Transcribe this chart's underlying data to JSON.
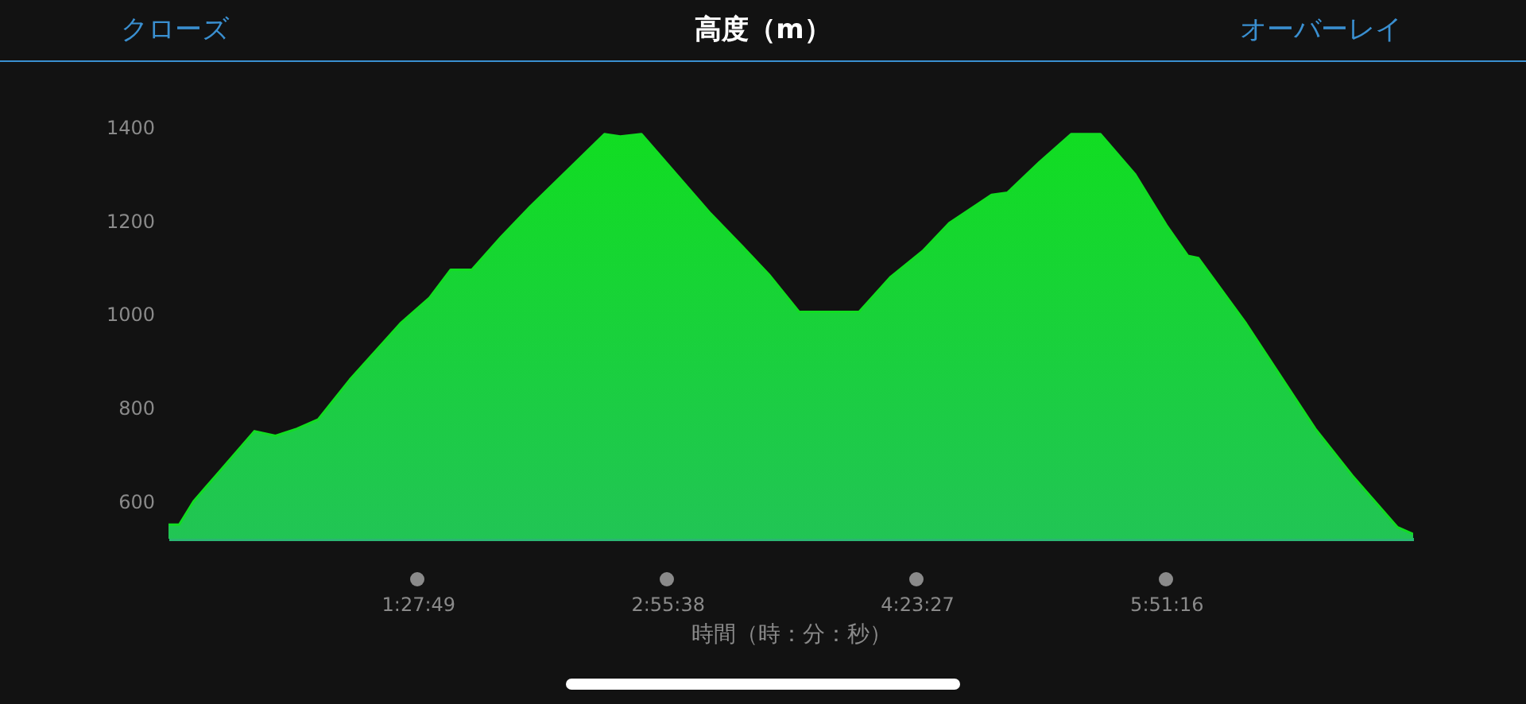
{
  "chart_data": {
    "type": "area",
    "title": "高度（m）",
    "xlabel": "時間（時：分：秒）",
    "annotations": [
      "クローズ",
      "オーバーレイ"
    ],
    "xlim": [
      0,
      7.303
    ],
    "ylim": [
      520,
      1400
    ],
    "xticks": [
      {
        "value": 1.4636,
        "label": "1:27:49"
      },
      {
        "value": 2.9272,
        "label": "2:55:38"
      },
      {
        "value": 4.3908,
        "label": "4:23:27"
      },
      {
        "value": 5.8544,
        "label": "5:51:16"
      }
    ],
    "yticks": [
      600,
      800,
      1000,
      1200,
      1400
    ],
    "grid": false,
    "series": [
      {
        "color": "#11dd22",
        "x": [
          0,
          0.063,
          0.147,
          0.302,
          0.504,
          0.628,
          0.753,
          0.878,
          1.064,
          1.36,
          1.531,
          1.655,
          1.78,
          1.951,
          2.122,
          2.558,
          2.651,
          2.775,
          3.181,
          3.367,
          3.523,
          3.7,
          4.052,
          4.238,
          4.425,
          4.581,
          4.829,
          4.923,
          5.11,
          5.296,
          5.468,
          5.67,
          5.856,
          5.981,
          6.043,
          6.323,
          6.729,
          6.946,
          7.21,
          7.303
        ],
        "values": [
          550,
          550,
          600,
          665,
          750,
          740,
          755,
          775,
          860,
          980,
          1035,
          1095,
          1095,
          1165,
          1230,
          1385,
          1380,
          1385,
          1215,
          1145,
          1085,
          1005,
          1005,
          1080,
          1135,
          1195,
          1255,
          1260,
          1325,
          1385,
          1385,
          1300,
          1190,
          1125,
          1120,
          980,
          755,
          655,
          545,
          530
        ]
      }
    ]
  }
}
